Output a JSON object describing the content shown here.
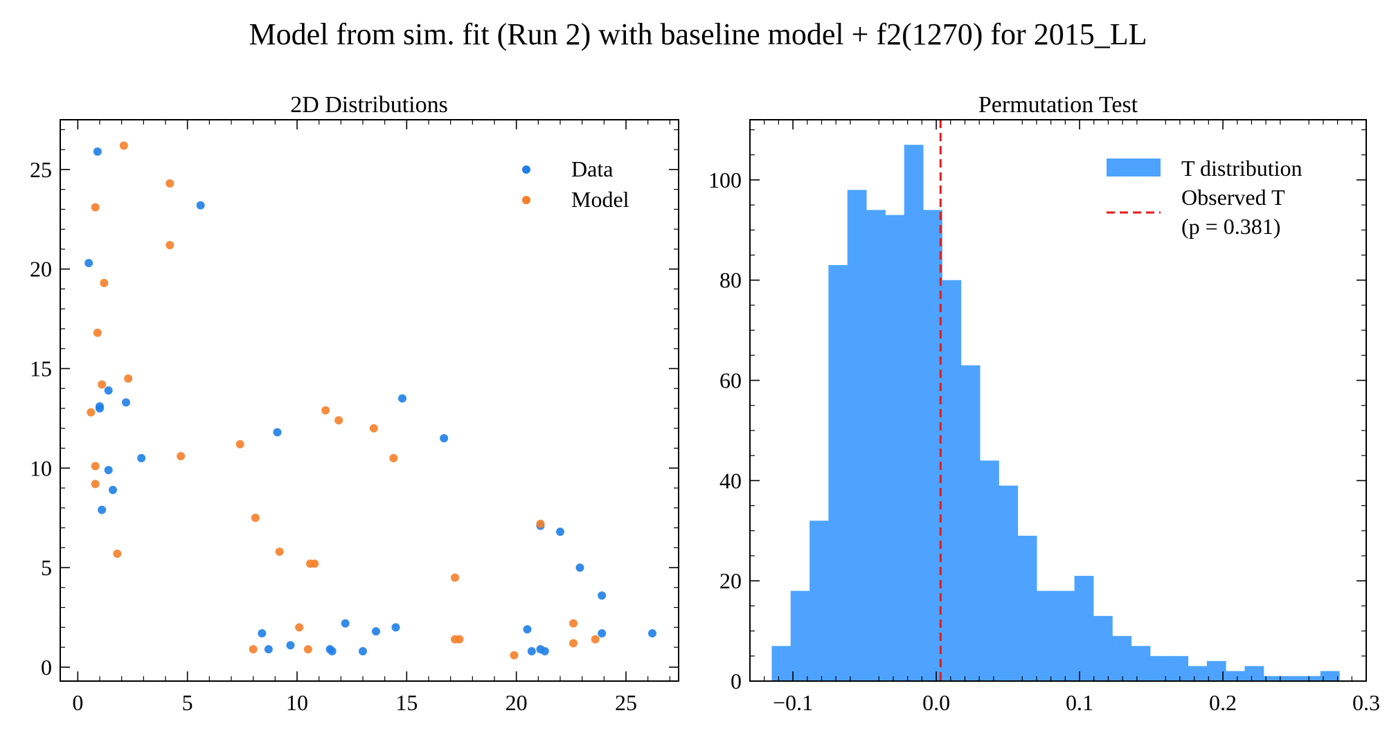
{
  "figure": {
    "suptitle": "Model from sim. fit (Run 2) with baseline model + f2(1270) for 2015_LL"
  },
  "chart_data": [
    {
      "type": "scatter",
      "title": "2D Distributions",
      "xlabel": "",
      "ylabel": "",
      "xlim": [
        -0.8,
        27.4
      ],
      "ylim": [
        -0.7,
        27.5
      ],
      "xticks": [
        0,
        5,
        10,
        15,
        20,
        25
      ],
      "yticks": [
        0,
        5,
        10,
        15,
        20,
        25
      ],
      "grid": false,
      "legend_placement": "top-right",
      "series": [
        {
          "name": "Data",
          "color": "#1f7fe6",
          "points": [
            [
              0.9,
              25.9
            ],
            [
              5.6,
              23.2
            ],
            [
              0.5,
              20.3
            ],
            [
              1.4,
              13.9
            ],
            [
              1.0,
              13.1
            ],
            [
              1.0,
              13.0
            ],
            [
              2.2,
              13.3
            ],
            [
              2.9,
              10.5
            ],
            [
              1.4,
              9.9
            ],
            [
              1.6,
              8.9
            ],
            [
              1.1,
              7.9
            ],
            [
              9.1,
              11.8
            ],
            [
              14.8,
              13.5
            ],
            [
              16.7,
              11.5
            ],
            [
              21.1,
              7.1
            ],
            [
              22.0,
              6.8
            ],
            [
              22.9,
              5.0
            ],
            [
              23.9,
              3.6
            ],
            [
              23.9,
              1.7
            ],
            [
              26.2,
              1.7
            ],
            [
              20.5,
              1.9
            ],
            [
              20.7,
              0.8
            ],
            [
              21.1,
              0.9
            ],
            [
              21.3,
              0.8
            ],
            [
              8.4,
              1.7
            ],
            [
              8.7,
              0.9
            ],
            [
              9.7,
              1.1
            ],
            [
              11.5,
              0.9
            ],
            [
              11.6,
              0.8
            ],
            [
              12.2,
              2.2
            ],
            [
              13.0,
              0.8
            ],
            [
              13.6,
              1.8
            ],
            [
              14.5,
              2.0
            ]
          ]
        },
        {
          "name": "Model",
          "color": "#f57f2a",
          "points": [
            [
              2.1,
              26.2
            ],
            [
              4.2,
              24.3
            ],
            [
              0.8,
              23.1
            ],
            [
              4.2,
              21.2
            ],
            [
              1.2,
              19.3
            ],
            [
              0.9,
              16.8
            ],
            [
              2.3,
              14.5
            ],
            [
              1.1,
              14.2
            ],
            [
              0.6,
              12.8
            ],
            [
              0.8,
              10.1
            ],
            [
              0.8,
              9.2
            ],
            [
              1.8,
              5.7
            ],
            [
              4.7,
              10.6
            ],
            [
              7.4,
              11.2
            ],
            [
              8.1,
              7.5
            ],
            [
              9.2,
              5.8
            ],
            [
              10.6,
              5.2
            ],
            [
              10.8,
              5.2
            ],
            [
              11.3,
              12.9
            ],
            [
              11.9,
              12.4
            ],
            [
              13.5,
              12.0
            ],
            [
              14.4,
              10.5
            ],
            [
              17.2,
              4.5
            ],
            [
              17.2,
              1.4
            ],
            [
              17.4,
              1.4
            ],
            [
              21.1,
              7.2
            ],
            [
              22.6,
              2.2
            ],
            [
              22.6,
              1.2
            ],
            [
              23.6,
              1.4
            ],
            [
              19.9,
              0.6
            ],
            [
              8.0,
              0.9
            ],
            [
              10.1,
              2.0
            ],
            [
              10.5,
              0.9
            ]
          ]
        }
      ]
    },
    {
      "type": "bar",
      "title": "Permutation Test",
      "xlabel": "",
      "ylabel": "",
      "xlim": [
        -0.13,
        0.3
      ],
      "ylim": [
        0,
        112
      ],
      "xticks": [
        -0.1,
        0.0,
        0.1,
        0.2,
        0.3
      ],
      "xtick_labels": [
        "−0.1",
        "0.0",
        "0.1",
        "0.2",
        "0.3"
      ],
      "yticks": [
        0,
        20,
        40,
        60,
        80,
        100
      ],
      "grid": false,
      "legend_placement": "top-right",
      "histogram": {
        "name": "T distribution",
        "color": "#4da3ff",
        "bin_start": -0.1148,
        "bin_width": 0.0132,
        "counts": [
          7,
          18,
          32,
          83,
          98,
          94,
          93,
          107,
          94,
          80,
          63,
          44,
          39,
          29,
          18,
          18,
          21,
          13,
          9,
          7,
          5,
          5,
          3,
          4,
          2,
          3,
          1,
          1,
          1,
          2
        ]
      },
      "observed": {
        "name": "Observed T",
        "p_label": "(p = 0.381)",
        "value": 0.003,
        "color": "#e41a1c"
      }
    }
  ]
}
